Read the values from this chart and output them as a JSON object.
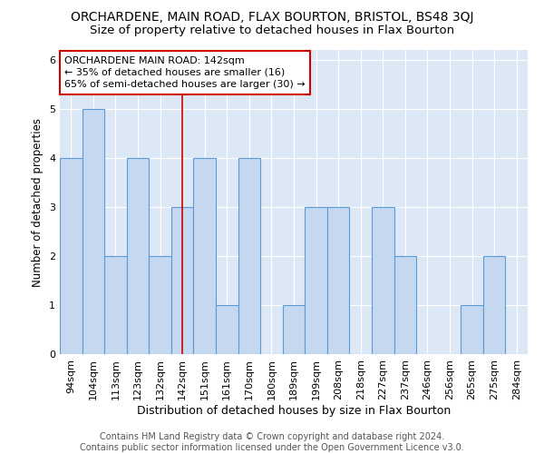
{
  "title": "ORCHARDENE, MAIN ROAD, FLAX BOURTON, BRISTOL, BS48 3QJ",
  "subtitle": "Size of property relative to detached houses in Flax Bourton",
  "xlabel": "Distribution of detached houses by size in Flax Bourton",
  "ylabel": "Number of detached properties",
  "categories": [
    "94sqm",
    "104sqm",
    "113sqm",
    "123sqm",
    "132sqm",
    "142sqm",
    "151sqm",
    "161sqm",
    "170sqm",
    "180sqm",
    "189sqm",
    "199sqm",
    "208sqm",
    "218sqm",
    "227sqm",
    "237sqm",
    "246sqm",
    "256sqm",
    "265sqm",
    "275sqm",
    "284sqm"
  ],
  "values": [
    4,
    5,
    2,
    4,
    2,
    3,
    4,
    1,
    4,
    0,
    1,
    3,
    3,
    0,
    3,
    2,
    0,
    0,
    1,
    2,
    0
  ],
  "bar_color": "#c5d8f0",
  "bar_edge_color": "#5b9bd5",
  "highlight_index": 5,
  "annotation_text": "ORCHARDENE MAIN ROAD: 142sqm\n← 35% of detached houses are smaller (16)\n65% of semi-detached houses are larger (30) →",
  "annotation_box_color": "white",
  "annotation_box_edge": "#cc0000",
  "ylim": [
    0,
    6.2
  ],
  "yticks": [
    0,
    1,
    2,
    3,
    4,
    5,
    6
  ],
  "background_color": "#dce8f5",
  "footer": "Contains HM Land Registry data © Crown copyright and database right 2024.\nContains public sector information licensed under the Open Government Licence v3.0.",
  "title_fontsize": 10,
  "subtitle_fontsize": 9.5,
  "xlabel_fontsize": 9,
  "ylabel_fontsize": 8.5,
  "tick_fontsize": 8,
  "annotation_fontsize": 8,
  "footer_fontsize": 7
}
